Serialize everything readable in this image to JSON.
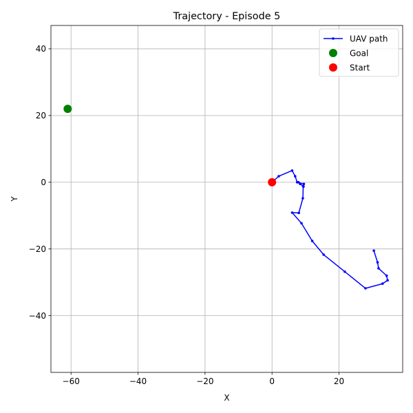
{
  "chart_data": {
    "type": "line",
    "title": "Trajectory - Episode 5",
    "xlabel": "X",
    "ylabel": "Y",
    "xlim": [
      -66,
      39
    ],
    "ylim": [
      -57,
      47
    ],
    "grid": true,
    "legend_placement": "top-right",
    "x_ticks": [
      {
        "value": -60,
        "label": "−60"
      },
      {
        "value": -40,
        "label": "−40"
      },
      {
        "value": -20,
        "label": "−20"
      },
      {
        "value": 0,
        "label": "0"
      },
      {
        "value": 20,
        "label": "20"
      }
    ],
    "y_ticks": [
      {
        "value": 40,
        "label": "40"
      },
      {
        "value": 20,
        "label": "20"
      },
      {
        "value": 0,
        "label": "0"
      },
      {
        "value": -20,
        "label": "−20"
      },
      {
        "value": -40,
        "label": "−40"
      }
    ],
    "path": {
      "name": "UAV path",
      "color": "#0000ff",
      "points": [
        [
          0,
          0
        ],
        [
          2,
          1.8
        ],
        [
          6,
          3.5
        ],
        [
          6.9,
          1.8
        ],
        [
          7.5,
          0
        ],
        [
          9.5,
          -0.5
        ],
        [
          9.4,
          -1.3
        ],
        [
          8.4,
          -0.5
        ],
        [
          7.9,
          0
        ],
        [
          9.3,
          -1.2
        ],
        [
          9.2,
          -4.8
        ],
        [
          8,
          -9.2
        ],
        [
          6,
          -9.1
        ],
        [
          8.8,
          -12.3
        ],
        [
          12,
          -17.6
        ],
        [
          15.4,
          -21.7
        ],
        [
          21.7,
          -26.8
        ],
        [
          27.9,
          -31.8
        ],
        [
          33,
          -30.4
        ],
        [
          34.5,
          -29.4
        ],
        [
          34.2,
          -28
        ],
        [
          31.8,
          -25.8
        ],
        [
          31.5,
          -24
        ],
        [
          30.4,
          -20.5
        ]
      ]
    },
    "goal": {
      "name": "Goal",
      "x": -61,
      "y": 22,
      "color": "#008000"
    },
    "start": {
      "name": "Start",
      "x": 0,
      "y": 0,
      "color": "#ff0000"
    }
  }
}
